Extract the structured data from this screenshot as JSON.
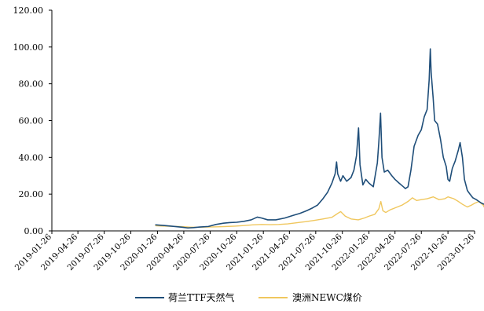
{
  "chart_data": {
    "type": "line",
    "title": "",
    "xlabel": "",
    "ylabel": "",
    "ylim": [
      0,
      120
    ],
    "yticks": [
      "0.00",
      "20.00",
      "40.00",
      "60.00",
      "80.00",
      "100.00",
      "120.00"
    ],
    "xticks": [
      "2019-01-26",
      "2019-04-26",
      "2019-07-26",
      "2019-10-26",
      "2020-01-26",
      "2020-04-26",
      "2020-07-26",
      "2020-10-26",
      "2021-01-26",
      "2021-04-26",
      "2021-07-26",
      "2021-10-26",
      "2022-01-26",
      "2022-04-26",
      "2022-07-26",
      "2022-10-26",
      "2023-01-26"
    ],
    "grid": false,
    "legend_position": "bottom-center",
    "series": [
      {
        "name": "荷兰TTF天然气",
        "color": "#1f4e79",
        "points": [
          [
            "2020-01-20",
            3.3
          ],
          [
            "2020-02-20",
            2.9
          ],
          [
            "2020-03-20",
            2.5
          ],
          [
            "2020-04-20",
            2.0
          ],
          [
            "2020-05-10",
            1.6
          ],
          [
            "2020-05-30",
            1.8
          ],
          [
            "2020-06-20",
            2.1
          ],
          [
            "2020-07-20",
            2.4
          ],
          [
            "2020-08-15",
            3.5
          ],
          [
            "2020-09-10",
            4.2
          ],
          [
            "2020-10-01",
            4.5
          ],
          [
            "2020-10-26",
            4.7
          ],
          [
            "2020-11-20",
            5.2
          ],
          [
            "2020-12-15",
            6.0
          ],
          [
            "2021-01-05",
            7.5
          ],
          [
            "2021-01-20",
            7.0
          ],
          [
            "2021-02-10",
            6.0
          ],
          [
            "2021-03-10",
            6.0
          ],
          [
            "2021-04-10",
            7.0
          ],
          [
            "2021-05-10",
            8.5
          ],
          [
            "2021-06-01",
            9.5
          ],
          [
            "2021-06-25",
            11.0
          ],
          [
            "2021-07-15",
            12.5
          ],
          [
            "2021-08-01",
            14.0
          ],
          [
            "2021-08-20",
            17.5
          ],
          [
            "2021-09-05",
            21.0
          ],
          [
            "2021-09-20",
            26.0
          ],
          [
            "2021-10-01",
            31.0
          ],
          [
            "2021-10-06",
            37.5
          ],
          [
            "2021-10-10",
            31.0
          ],
          [
            "2021-10-20",
            27.0
          ],
          [
            "2021-10-28",
            30.0
          ],
          [
            "2021-11-10",
            27.0
          ],
          [
            "2021-11-25",
            29.0
          ],
          [
            "2021-12-05",
            33.0
          ],
          [
            "2021-12-14",
            41.0
          ],
          [
            "2021-12-21",
            56.0
          ],
          [
            "2021-12-26",
            36.0
          ],
          [
            "2022-01-05",
            25.0
          ],
          [
            "2022-01-15",
            28.0
          ],
          [
            "2022-01-26",
            26.0
          ],
          [
            "2022-02-10",
            24.0
          ],
          [
            "2022-02-24",
            37.0
          ],
          [
            "2022-03-01",
            48.0
          ],
          [
            "2022-03-07",
            64.0
          ],
          [
            "2022-03-12",
            40.0
          ],
          [
            "2022-03-20",
            32.0
          ],
          [
            "2022-04-01",
            33.0
          ],
          [
            "2022-04-15",
            30.0
          ],
          [
            "2022-04-26",
            28.0
          ],
          [
            "2022-05-10",
            26.0
          ],
          [
            "2022-05-25",
            24.0
          ],
          [
            "2022-06-01",
            23.0
          ],
          [
            "2022-06-10",
            24.0
          ],
          [
            "2022-06-20",
            33.0
          ],
          [
            "2022-07-01",
            46.0
          ],
          [
            "2022-07-15",
            52.0
          ],
          [
            "2022-07-26",
            55.0
          ],
          [
            "2022-08-05",
            62.0
          ],
          [
            "2022-08-15",
            66.0
          ],
          [
            "2022-08-22",
            82.0
          ],
          [
            "2022-08-26",
            99.0
          ],
          [
            "2022-08-29",
            86.0
          ],
          [
            "2022-09-05",
            72.0
          ],
          [
            "2022-09-10",
            60.0
          ],
          [
            "2022-09-20",
            58.0
          ],
          [
            "2022-09-30",
            50.0
          ],
          [
            "2022-10-10",
            40.0
          ],
          [
            "2022-10-20",
            35.0
          ],
          [
            "2022-10-26",
            28.0
          ],
          [
            "2022-11-01",
            27.0
          ],
          [
            "2022-11-10",
            34.0
          ],
          [
            "2022-11-20",
            38.0
          ],
          [
            "2022-12-01",
            44.0
          ],
          [
            "2022-12-07",
            48.0
          ],
          [
            "2022-12-15",
            40.0
          ],
          [
            "2022-12-22",
            28.0
          ],
          [
            "2023-01-01",
            22.0
          ],
          [
            "2023-01-10",
            20.0
          ],
          [
            "2023-01-20",
            18.0
          ],
          [
            "2023-02-01",
            17.0
          ],
          [
            "2023-02-10",
            16.0
          ],
          [
            "2023-02-20",
            15.0
          ],
          [
            "2023-02-28",
            14.5
          ],
          [
            "2023-03-05",
            14.0
          ]
        ]
      },
      {
        "name": "澳洲NEWC煤价",
        "color": "#f0c75e",
        "points": [
          [
            "2020-01-20",
            2.8
          ],
          [
            "2020-02-20",
            2.6
          ],
          [
            "2020-03-20",
            2.5
          ],
          [
            "2020-04-20",
            2.3
          ],
          [
            "2020-05-20",
            2.0
          ],
          [
            "2020-06-20",
            2.0
          ],
          [
            "2020-07-20",
            2.1
          ],
          [
            "2020-08-20",
            2.2
          ],
          [
            "2020-09-20",
            2.4
          ],
          [
            "2020-10-20",
            2.6
          ],
          [
            "2020-11-20",
            2.9
          ],
          [
            "2020-12-20",
            3.3
          ],
          [
            "2021-01-20",
            3.5
          ],
          [
            "2021-02-20",
            3.4
          ],
          [
            "2021-03-20",
            3.5
          ],
          [
            "2021-04-20",
            3.8
          ],
          [
            "2021-05-20",
            4.4
          ],
          [
            "2021-06-20",
            5.0
          ],
          [
            "2021-07-20",
            5.7
          ],
          [
            "2021-08-20",
            6.5
          ],
          [
            "2021-09-20",
            7.4
          ],
          [
            "2021-10-10",
            9.5
          ],
          [
            "2021-10-20",
            10.5
          ],
          [
            "2021-11-05",
            8.0
          ],
          [
            "2021-11-25",
            6.5
          ],
          [
            "2021-12-20",
            6.0
          ],
          [
            "2022-01-10",
            7.0
          ],
          [
            "2022-01-26",
            8.0
          ],
          [
            "2022-02-15",
            9.0
          ],
          [
            "2022-03-01",
            12.0
          ],
          [
            "2022-03-08",
            16.0
          ],
          [
            "2022-03-15",
            11.0
          ],
          [
            "2022-03-25",
            10.0
          ],
          [
            "2022-04-10",
            11.5
          ],
          [
            "2022-04-26",
            12.5
          ],
          [
            "2022-05-20",
            14.0
          ],
          [
            "2022-06-10",
            16.0
          ],
          [
            "2022-06-25",
            18.0
          ],
          [
            "2022-07-10",
            16.5
          ],
          [
            "2022-07-26",
            17.0
          ],
          [
            "2022-08-15",
            17.5
          ],
          [
            "2022-09-05",
            18.5
          ],
          [
            "2022-09-25",
            17.0
          ],
          [
            "2022-10-15",
            17.5
          ],
          [
            "2022-10-26",
            18.5
          ],
          [
            "2022-11-15",
            17.5
          ],
          [
            "2022-12-01",
            16.0
          ],
          [
            "2022-12-15",
            14.5
          ],
          [
            "2023-01-01",
            13.0
          ],
          [
            "2023-01-15",
            14.0
          ],
          [
            "2023-01-26",
            15.0
          ],
          [
            "2023-02-10",
            16.0
          ],
          [
            "2023-02-25",
            14.0
          ],
          [
            "2023-03-05",
            11.5
          ]
        ]
      }
    ]
  }
}
